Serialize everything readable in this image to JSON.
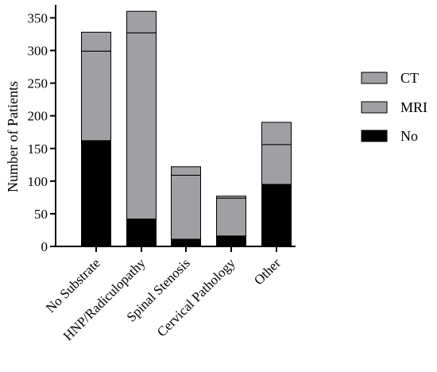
{
  "chart_data": {
    "type": "bar",
    "stacked": true,
    "title": "",
    "xlabel": "",
    "ylabel": "Number of Patients",
    "ylim": [
      0,
      370
    ],
    "yticks": [
      0,
      50,
      100,
      150,
      200,
      250,
      300,
      350
    ],
    "grid": false,
    "legend_position": "right",
    "categories": [
      "No Substrate",
      "HNP/Radiculopathy",
      "Spinal Stenosis",
      "Cervical Pathology",
      "Other"
    ],
    "series": [
      {
        "name": "No",
        "color": "#000000",
        "values": [
          162,
          42,
          11,
          16,
          95
        ]
      },
      {
        "name": "MRI",
        "color": "#a0a0a4",
        "values": [
          137,
          285,
          98,
          58,
          61
        ]
      },
      {
        "name": "CT",
        "color": "#a0a0a4",
        "values": [
          29,
          33,
          13,
          3,
          34
        ]
      }
    ],
    "legend_order": [
      "CT",
      "MRI",
      "No"
    ]
  }
}
